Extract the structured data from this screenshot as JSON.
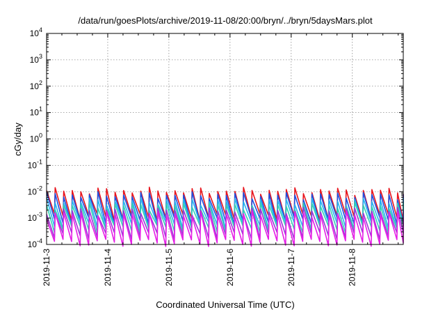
{
  "chart_data": {
    "type": "line",
    "title": "/data/run/goesPlots/archive/2019-11-08/20:00/bryn/../bryn/5daysMars.plot",
    "xlabel": "Coordinated Universal Time (UTC)",
    "ylabel": "cGy/day",
    "x_range_days": [
      "2019-11-03",
      "2019-11-08 20:00"
    ],
    "x_ticks": [
      "2019-11-3",
      "2019-11-4",
      "2019-11-5",
      "2019-11-6",
      "2019-11-7",
      "2019-11-8"
    ],
    "y_scale": "log",
    "ylim": [
      0.0001,
      10000
    ],
    "y_ticks": [
      {
        "mant": "10",
        "exp": "-4"
      },
      {
        "mant": "10",
        "exp": "-3"
      },
      {
        "mant": "10",
        "exp": "-2"
      },
      {
        "mant": "10",
        "exp": "-1"
      },
      {
        "mant": "10",
        "exp": "0"
      },
      {
        "mant": "10",
        "exp": "1"
      },
      {
        "mant": "10",
        "exp": "2"
      },
      {
        "mant": "10",
        "exp": "3"
      },
      {
        "mant": "10",
        "exp": "4"
      }
    ],
    "grid": true,
    "legend": "none",
    "sawtooth_period_days": 0.14,
    "series": [
      {
        "color": "#e8141c",
        "peak": 0.011,
        "trough": 0.0011
      },
      {
        "color": "#1e50e0",
        "peak": 0.0075,
        "trough": 0.0008
      },
      {
        "color": "#28b4f0",
        "peak": 0.0045,
        "trough": 0.00055
      },
      {
        "color": "#34d2b4",
        "peak": 0.003,
        "trough": 0.0004
      },
      {
        "color": "#9a38d8",
        "peak": 0.0019,
        "trough": 0.00022
      },
      {
        "color": "#e61ee6",
        "peak": 0.0014,
        "trough": 0.00012
      }
    ]
  }
}
